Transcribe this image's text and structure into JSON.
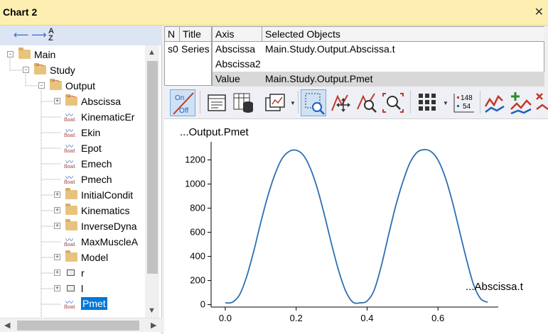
{
  "window": {
    "title": "Chart 2",
    "close_icon": "close-icon"
  },
  "nav": {
    "back_icon": "arrow-left-icon",
    "forward_icon": "arrow-right-icon",
    "sort_icon": "sort-az-icon",
    "sort_glyph_top": "A",
    "sort_glyph_bottom": "Z"
  },
  "tree": {
    "items": [
      {
        "label": "Main",
        "icon": "folder-icon",
        "level": 0,
        "expander": "-"
      },
      {
        "label": "Study",
        "icon": "study-folder-icon",
        "level": 1,
        "expander": "-"
      },
      {
        "label": "Output",
        "icon": "output-folder-icon",
        "level": 2,
        "expander": "-"
      },
      {
        "label": "Abscissa",
        "icon": "chart-folder-icon",
        "level": 3,
        "expander": "+"
      },
      {
        "label": "KinematicEr",
        "icon": "float-icon",
        "level": 3,
        "expander": ""
      },
      {
        "label": "Ekin",
        "icon": "float-icon",
        "level": 3,
        "expander": ""
      },
      {
        "label": "Epot",
        "icon": "float-icon",
        "level": 3,
        "expander": ""
      },
      {
        "label": "Emech",
        "icon": "float-icon",
        "level": 3,
        "expander": ""
      },
      {
        "label": "Pmech",
        "icon": "float-icon",
        "level": 3,
        "expander": ""
      },
      {
        "label": "InitialCondit",
        "icon": "folder-icon",
        "level": 3,
        "expander": "+"
      },
      {
        "label": "Kinematics",
        "icon": "folder-icon",
        "level": 3,
        "expander": "+"
      },
      {
        "label": "InverseDyna",
        "icon": "folder-icon",
        "level": 3,
        "expander": "+"
      },
      {
        "label": "MaxMuscleA",
        "icon": "float-icon",
        "level": 3,
        "expander": ""
      },
      {
        "label": "Model",
        "icon": "folder-icon",
        "level": 3,
        "expander": "+"
      },
      {
        "label": "r",
        "icon": "matrix-icon",
        "level": 3,
        "expander": "+"
      },
      {
        "label": "l",
        "icon": "matrix-icon",
        "level": 3,
        "expander": "+"
      },
      {
        "label": "Pmet",
        "icon": "float-icon",
        "level": 3,
        "expander": "",
        "selected": true
      }
    ],
    "float_tag": "float"
  },
  "series_table": {
    "headers": [
      "N",
      "Title"
    ],
    "rows": [
      [
        "s0",
        "Series"
      ]
    ]
  },
  "axis_table": {
    "headers": [
      "Axis",
      "Selected Objects"
    ],
    "rows": [
      [
        "Abscissa",
        "Main.Study.Output.Abscissa.t"
      ],
      [
        "Abscissa2",
        ""
      ],
      [
        "Value",
        "Main.Study.Output.Pmet"
      ]
    ],
    "selected_row": 2
  },
  "toolbar": {
    "onoff_top": "On",
    "onoff_bottom": "Off",
    "numbers_top": "148",
    "numbers_bottom": "54",
    "buttons": [
      "on-off-toggle-icon",
      "properties-icon",
      "table-database-icon",
      "export-chart-icon",
      "zoom-window-icon",
      "pan-icon",
      "zoom-in-icon",
      "zoom-fit-icon",
      "grid-icon",
      "value-labels-icon",
      "curve-icon",
      "add-curve-icon",
      "remove-curve-icon"
    ]
  },
  "chart_data": {
    "type": "line",
    "title": "...Output.Pmet",
    "xlabel": "...Abscissa.t",
    "ylabel": "",
    "xlim": [
      -0.04,
      0.77
    ],
    "ylim": [
      -20,
      1350
    ],
    "xticks": [
      0.0,
      0.2,
      0.4,
      0.6
    ],
    "xtick_labels": [
      "0.0",
      "0.2",
      "0.4",
      "0.6"
    ],
    "yticks": [
      0,
      200,
      400,
      600,
      800,
      1000,
      1200
    ],
    "ytick_labels": [
      "0",
      "200",
      "400",
      "600",
      "800",
      "1000",
      "1200"
    ],
    "grid": false,
    "line_color": "#2e6fb0",
    "series": [
      {
        "x": [
          0.0,
          0.02,
          0.04,
          0.06,
          0.08,
          0.1,
          0.12,
          0.14,
          0.16,
          0.18,
          0.2,
          0.22,
          0.24,
          0.26,
          0.28,
          0.3,
          0.32,
          0.34,
          0.36,
          0.38,
          0.4,
          0.42,
          0.44,
          0.46,
          0.48,
          0.5,
          0.52,
          0.54,
          0.56,
          0.58,
          0.6,
          0.62,
          0.64,
          0.66,
          0.68,
          0.7,
          0.72,
          0.74
        ],
        "values": [
          15,
          20,
          80,
          230,
          440,
          680,
          900,
          1080,
          1210,
          1270,
          1280,
          1240,
          1130,
          960,
          740,
          500,
          280,
          110,
          20,
          15,
          30,
          120,
          320,
          570,
          810,
          1010,
          1170,
          1260,
          1285,
          1270,
          1200,
          1060,
          860,
          620,
          380,
          170,
          50,
          20
        ]
      }
    ]
  }
}
